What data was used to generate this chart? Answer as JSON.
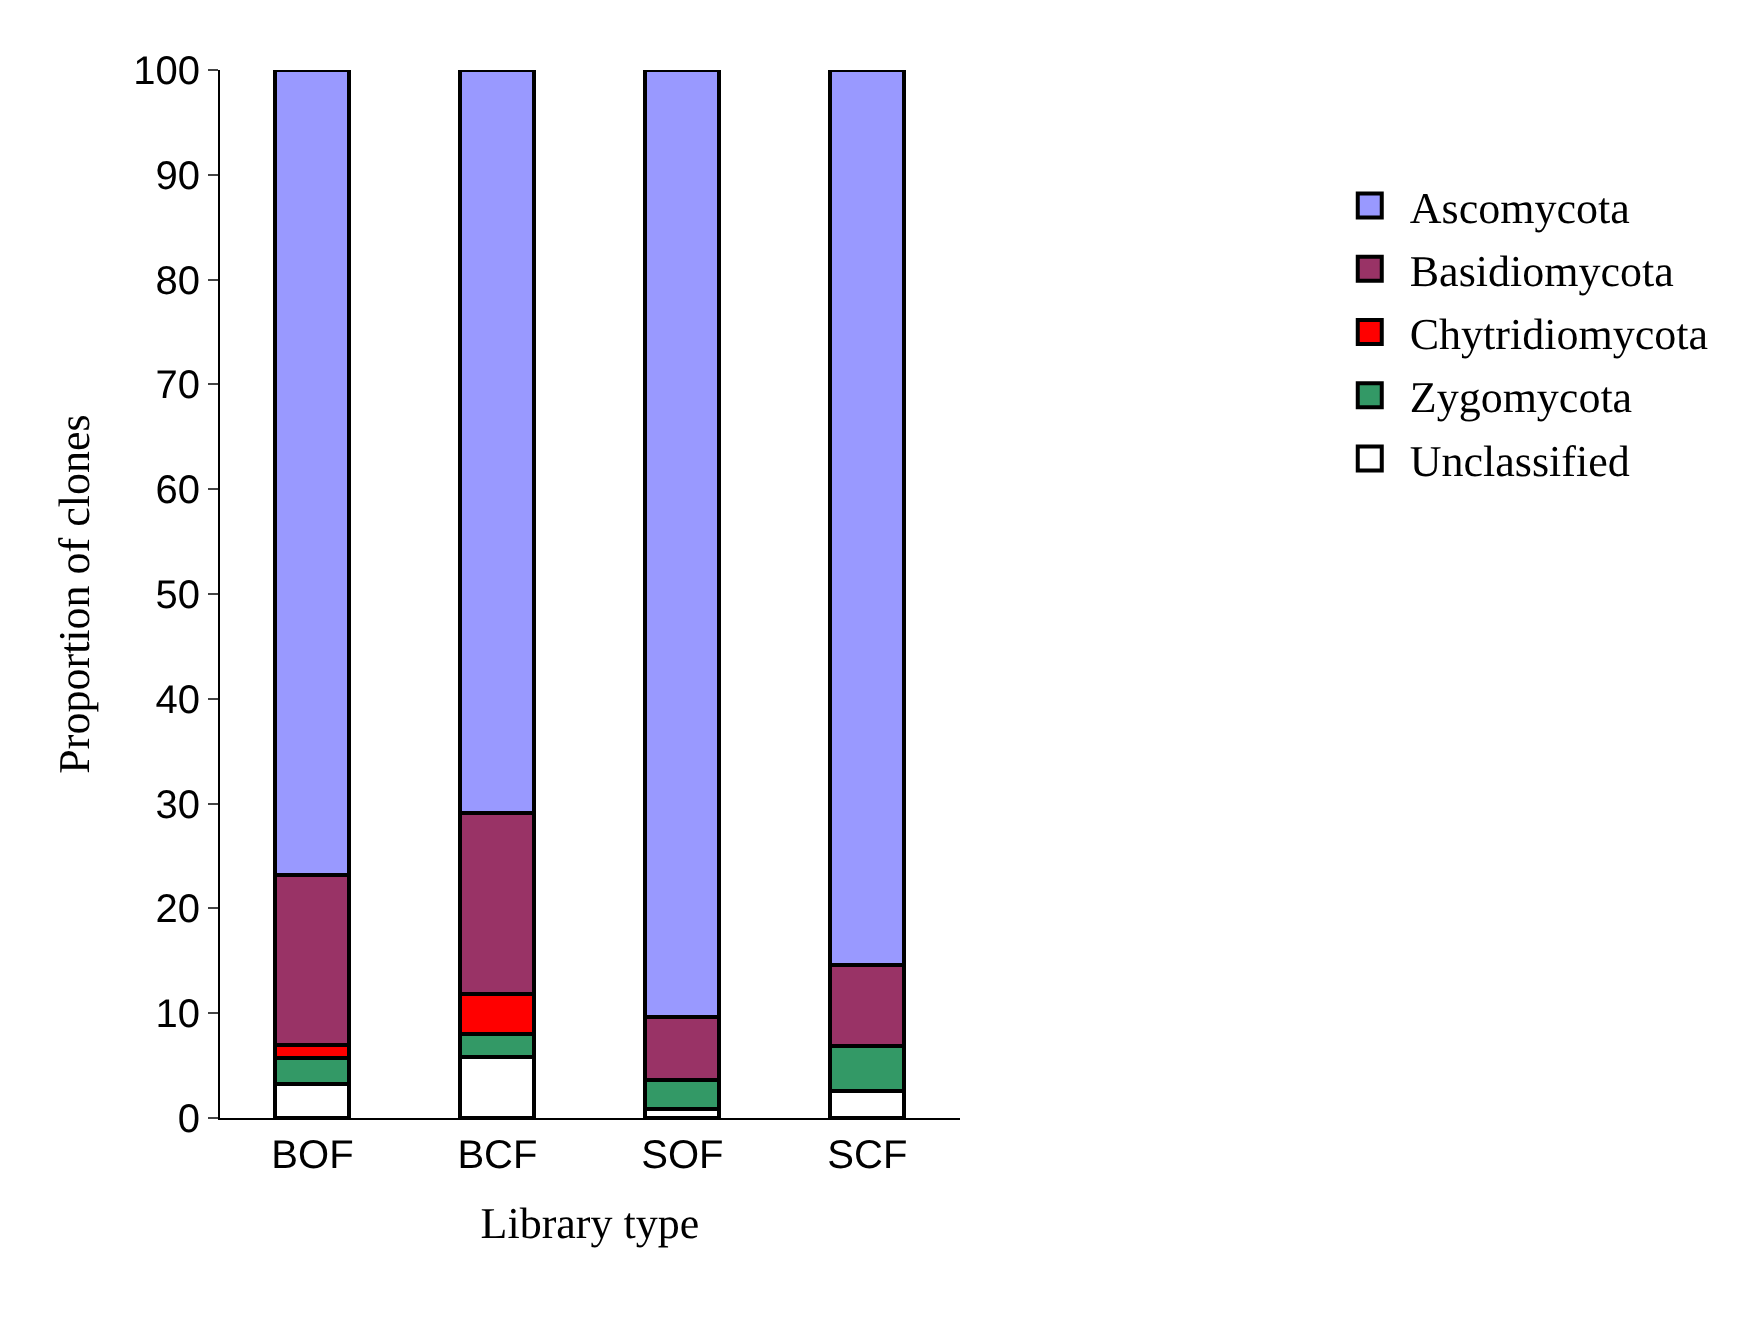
{
  "chart_data": {
    "type": "bar",
    "stacked": true,
    "xlabel": "Library type",
    "ylabel": "Proportion of clones",
    "categories": [
      "BOF",
      "BCF",
      "SOF",
      "SCF"
    ],
    "series": [
      {
        "name": "Unclassified",
        "color": "#ffffff",
        "values": [
          3.2,
          5.8,
          0.9,
          2.6
        ]
      },
      {
        "name": "Zygomycota",
        "color": "#339966",
        "values": [
          2.5,
          2.2,
          2.7,
          4.3
        ]
      },
      {
        "name": "Chytridiomycota",
        "color": "#ff0000",
        "values": [
          1.3,
          3.8,
          0,
          0
        ]
      },
      {
        "name": "Basidiomycota",
        "color": "#993366",
        "values": [
          16.2,
          17.3,
          6.0,
          7.7
        ]
      },
      {
        "name": "Ascomycota",
        "color": "#9999ff",
        "values": [
          76.8,
          70.9,
          90.4,
          85.4
        ]
      }
    ],
    "ylim": [
      0,
      100
    ],
    "yticks": [
      0,
      10,
      20,
      30,
      40,
      50,
      60,
      70,
      80,
      90,
      100
    ],
    "grid": false,
    "legend": "right"
  }
}
